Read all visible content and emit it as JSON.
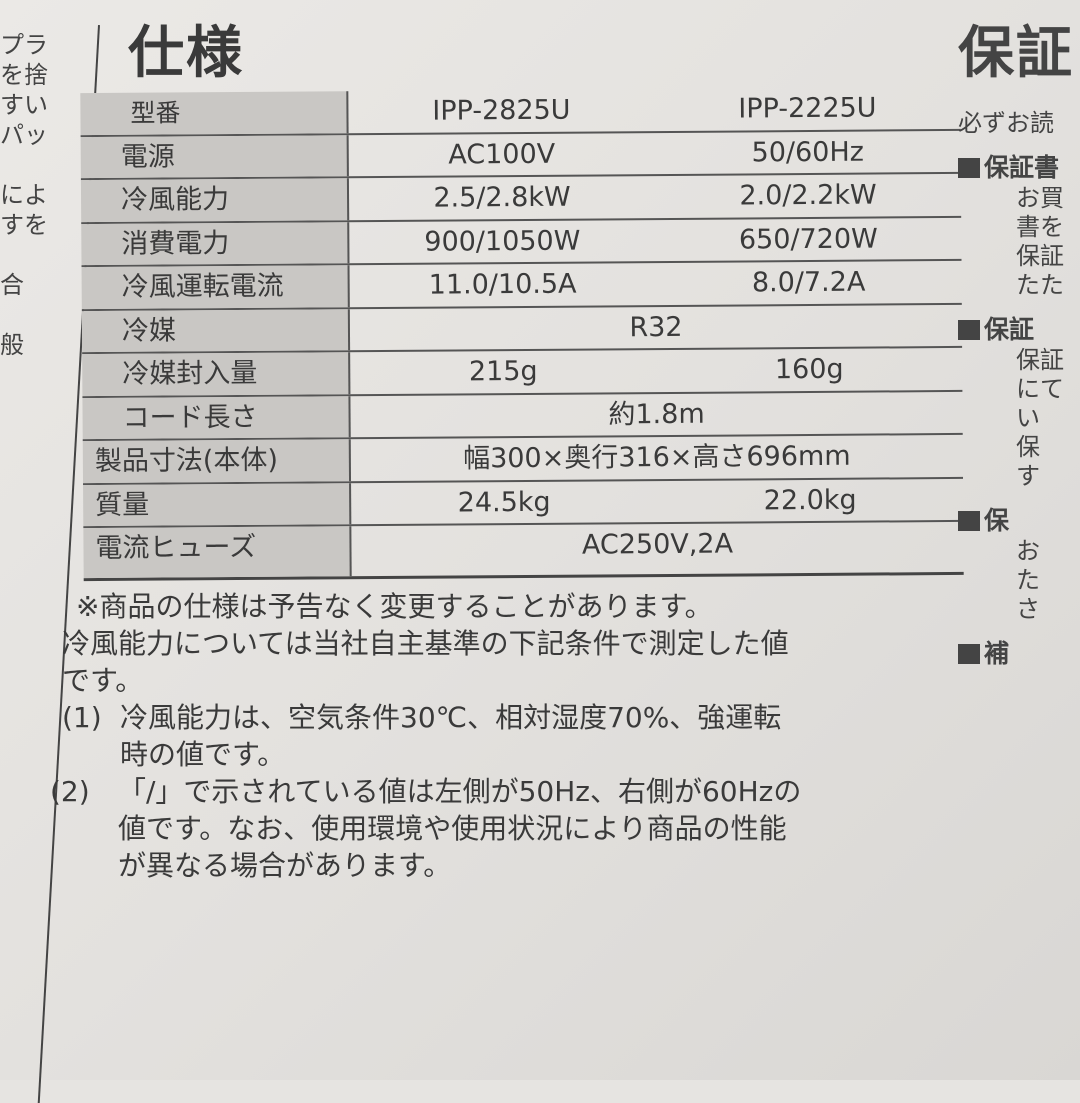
{
  "left_fragments": [
    "プラ",
    "を捨",
    "すい",
    "パッ",
    "",
    "によ",
    "すを",
    "",
    "合",
    "",
    "般",
    "",
    ""
  ],
  "title": "仕様",
  "spec_table": {
    "rows": [
      {
        "label": "型番",
        "values": [
          "IPP-2825U",
          "IPP-2225U"
        ]
      },
      {
        "label": "電源",
        "values": [
          "AC100V",
          "50/60Hz"
        ]
      },
      {
        "label": "冷風能力",
        "values": [
          "2.5/2.8kW",
          "2.0/2.2kW"
        ]
      },
      {
        "label": "消費電力",
        "values": [
          "900/1050W",
          "650/720W"
        ]
      },
      {
        "label": "冷風運転電流",
        "values": [
          "11.0/10.5A",
          "8.0/7.2A"
        ]
      },
      {
        "label": "冷媒",
        "values": [
          "R32"
        ]
      },
      {
        "label": "冷媒封入量",
        "values": [
          "215g",
          "160g"
        ]
      },
      {
        "label": "コード長さ",
        "values": [
          "約1.8m"
        ]
      },
      {
        "label": "製品寸法(本体)",
        "values": [
          "幅300×奥行316×高さ696mm"
        ]
      },
      {
        "label": "質量",
        "values": [
          "24.5kg",
          "22.0kg"
        ]
      },
      {
        "label": "電流ヒューズ",
        "values": [
          "AC250V,2A"
        ]
      }
    ]
  },
  "notes": {
    "line1": "※商品の仕様は予告なく変更することがあります。",
    "line2": "冷風能力については当社自主基準の下記条件で測定した値",
    "line3": "です。",
    "item1_num": "(1)",
    "item1_a": "冷風能力は、空気条件30℃、相対湿度70%、強運転",
    "item1_b": "時の値です。",
    "item2_num": "(2)",
    "item2_a": "「/」で示されている値は左側が50Hz、右側が60Hzの",
    "item2_b": "値です。なお、使用環境や使用状況により商品の性能",
    "item2_c": "が異なる場合があります。"
  },
  "right_fragments": {
    "title": "保証",
    "intro": "必ずお読",
    "sec1": "保証書",
    "sec1_lines": [
      "お買",
      "書を",
      "保証",
      "たた"
    ],
    "sec2": "保証",
    "sec2_lines": [
      "保証",
      "にて",
      "い",
      "保",
      "す"
    ],
    "sec3": "保",
    "sec3_lines": [
      "お",
      "た",
      "さ"
    ],
    "sec4": "補"
  }
}
